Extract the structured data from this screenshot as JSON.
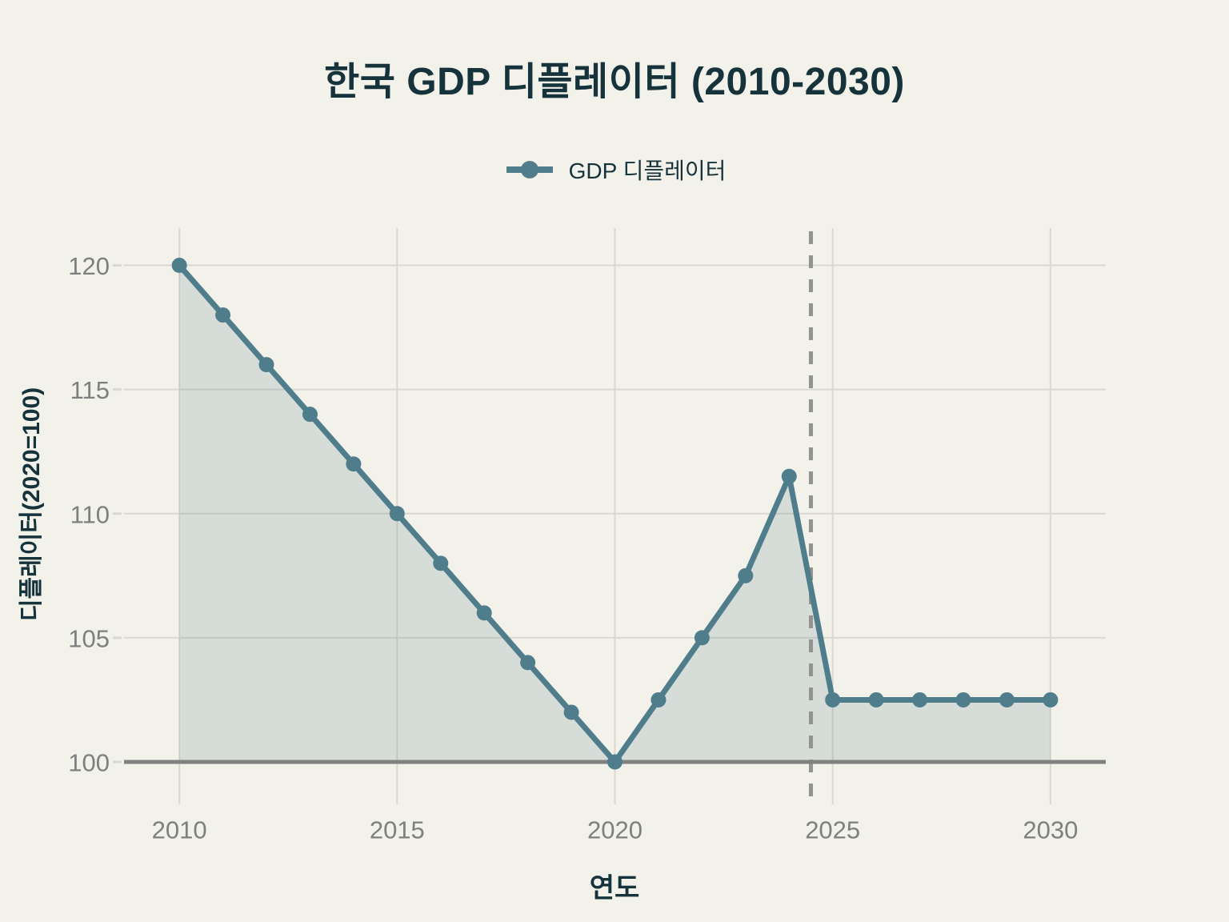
{
  "chart_data": {
    "type": "area",
    "title": "한국 GDP 디플레이터 (2010-2030)",
    "xlabel": "연도",
    "ylabel": "디플레이터(2020=100)",
    "legend": [
      {
        "label": "GDP 디플레이터",
        "marker": "line-with-dot"
      }
    ],
    "legend_position": "top-center",
    "x": [
      2010,
      2011,
      2012,
      2013,
      2014,
      2015,
      2016,
      2017,
      2018,
      2019,
      2020,
      2021,
      2022,
      2023,
      2024,
      2025,
      2026,
      2027,
      2028,
      2029,
      2030
    ],
    "series": [
      {
        "name": "GDP 디플레이터",
        "values": [
          120,
          118,
          116,
          114,
          112,
          110,
          108,
          106,
          104,
          102,
          100,
          102.5,
          105,
          107.5,
          111.5,
          102.5,
          102.5,
          102.5,
          102.5,
          102.5,
          102.5
        ]
      }
    ],
    "x_ticks": [
      2010,
      2015,
      2020,
      2025,
      2030
    ],
    "y_ticks": [
      100,
      105,
      110,
      115,
      120
    ],
    "xlim": [
      2008.73,
      2031.27
    ],
    "ylim": [
      100,
      121.5
    ],
    "grid": true,
    "baseline_value": 100,
    "annotations": [
      {
        "type": "vline",
        "x": 2024.5,
        "style": "dashed",
        "meaning": "forecast-divider"
      }
    ],
    "colors": {
      "bg": "#f2f1ea",
      "ink": "#16333c",
      "accent": "#4f7d8b",
      "grid": "#d9d8d0",
      "axis": "#7f827e",
      "tick": "#7d807e",
      "divider": "#90938f"
    },
    "area_opacity": 0.17
  }
}
